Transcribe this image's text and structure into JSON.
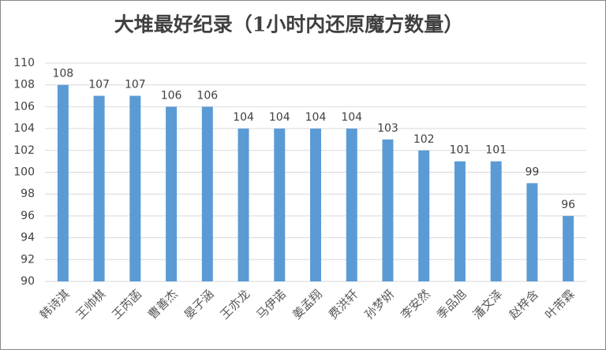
{
  "chart_data": {
    "type": "bar",
    "title": "大堆最好纪录（1小时内还原魔方数量）",
    "categories": [
      "韩诗淇",
      "王帅棋",
      "王芮菡",
      "曹善杰",
      "晏子涵",
      "王亦龙",
      "马伊诺",
      "姜孟翔",
      "费洪轩",
      "孙梦妍",
      "李安然",
      "季品旭",
      "潘文泽",
      "赵梓含",
      "叶芾霖"
    ],
    "values": [
      108,
      107,
      107,
      106,
      106,
      104,
      104,
      104,
      104,
      103,
      102,
      101,
      101,
      99,
      96
    ],
    "color": "#5b9bd5",
    "ylim": [
      90,
      110
    ],
    "yticks": [
      90,
      92,
      94,
      96,
      98,
      100,
      102,
      104,
      106,
      108,
      110
    ],
    "grid": true
  }
}
